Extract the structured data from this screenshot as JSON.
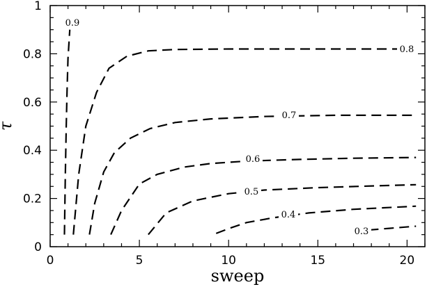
{
  "chart_data": {
    "type": "line",
    "title": "",
    "xlabel": "sweep",
    "ylabel": "τ",
    "xlim": [
      0,
      21
    ],
    "ylim": [
      0,
      1
    ],
    "xticks": [
      0,
      5,
      10,
      15,
      20
    ],
    "yticks": [
      0,
      0.2,
      0.4,
      0.6,
      0.8,
      1
    ],
    "xtick_labels": [
      "0",
      "5",
      "10",
      "15",
      "20"
    ],
    "ytick_labels": [
      "0",
      "0.2",
      "0.4",
      "0.6",
      "0.8",
      "1"
    ],
    "grid": false,
    "series": [
      {
        "label": "0.9",
        "x": [
          0.8,
          0.85,
          0.9,
          0.95,
          1.0,
          1.1
        ],
        "y": [
          0.05,
          0.3,
          0.5,
          0.65,
          0.78,
          0.9
        ]
      },
      {
        "label": "0.8",
        "x": [
          1.3,
          1.6,
          2.0,
          2.6,
          3.3,
          4.3,
          5.5,
          7.0,
          10,
          15,
          20
        ],
        "y": [
          0.05,
          0.3,
          0.5,
          0.64,
          0.74,
          0.79,
          0.812,
          0.818,
          0.82,
          0.82,
          0.82
        ]
      },
      {
        "label": "0.7",
        "x": [
          2.2,
          2.5,
          3.0,
          3.6,
          4.5,
          5.6,
          7.0,
          9.0,
          12,
          16,
          20.5
        ],
        "y": [
          0.05,
          0.18,
          0.31,
          0.39,
          0.45,
          0.49,
          0.515,
          0.53,
          0.54,
          0.545,
          0.545
        ]
      },
      {
        "label": "0.6",
        "x": [
          3.4,
          4.0,
          5.0,
          6.0,
          7.5,
          9.0,
          11,
          14,
          17,
          20.5
        ],
        "y": [
          0.05,
          0.15,
          0.26,
          0.3,
          0.33,
          0.345,
          0.355,
          0.362,
          0.367,
          0.37
        ]
      },
      {
        "label": "0.5",
        "x": [
          5.5,
          6.5,
          8.0,
          10,
          12,
          15,
          18,
          20.5
        ],
        "y": [
          0.05,
          0.14,
          0.19,
          0.22,
          0.235,
          0.245,
          0.252,
          0.257
        ]
      },
      {
        "label": "0.4",
        "x": [
          9.3,
          10,
          11,
          12.5,
          14.5,
          17,
          20.5
        ],
        "y": [
          0.055,
          0.075,
          0.1,
          0.12,
          0.14,
          0.155,
          0.168
        ]
      },
      {
        "label": "0.3",
        "x": [
          17,
          18,
          19,
          20.5
        ],
        "y": [
          0.063,
          0.07,
          0.076,
          0.085
        ]
      }
    ]
  }
}
